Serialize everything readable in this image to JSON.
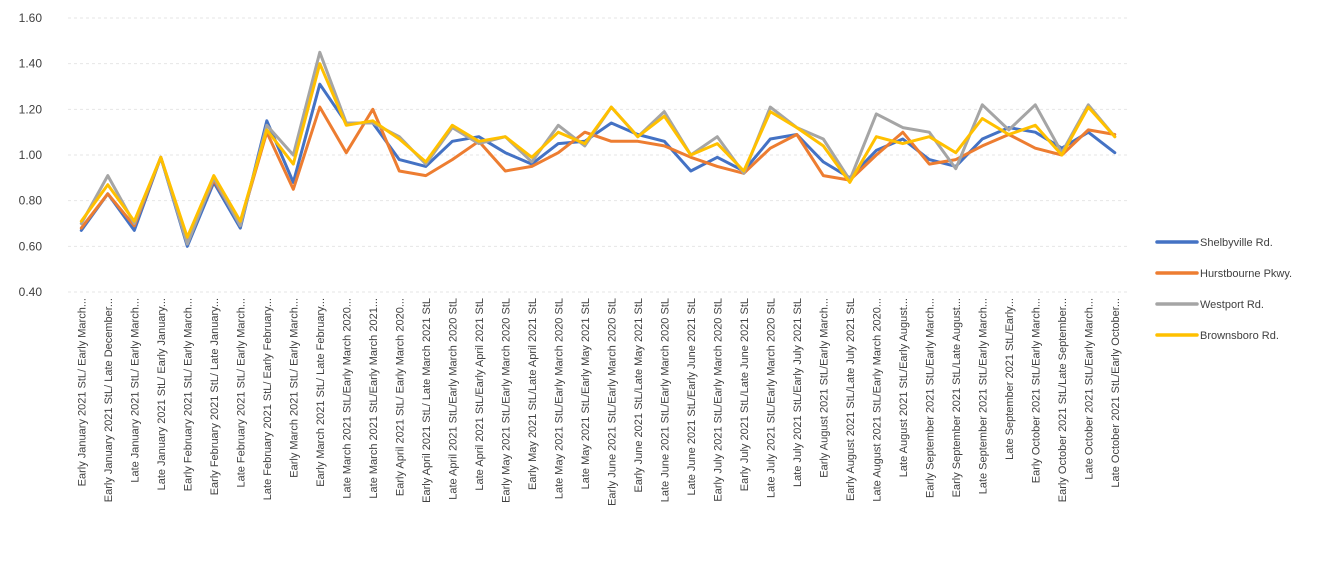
{
  "chart_data": {
    "type": "line",
    "title": "",
    "xlabel": "",
    "ylabel": "",
    "ylim": [
      0.4,
      1.6
    ],
    "yticks": [
      "0.40",
      "0.60",
      "0.80",
      "1.00",
      "1.20",
      "1.40",
      "1.60"
    ],
    "grid": true,
    "legend_position": "right",
    "categories": [
      "Early January 2021 StL/ Early March...",
      "Early January 2021 StL/ Late December...",
      "Late January 2021 StL/ Early March...",
      "Late January 2021 StL/ Early January...",
      "Early February 2021 StL/ Early March...",
      "Early February 2021 StL/ Late January...",
      "Late February 2021 StL/ Early March...",
      "Late February 2021 StL/ Early February...",
      "Early March 2021 StL/ Early March...",
      "Early March 2021 StL/ Late February...",
      "Late March 2021 StL/Early March 2020...",
      "Late March 2021 StL/Early March 2021...",
      "Early April 2021 StL/ Early March 2020...",
      "Early April 2021 StL/ Late March 2021 StL",
      "Late April 2021 StL/Early March 2020 StL",
      "Late April 2021 StL/Early April 2021 StL",
      "Early May 2021 StL/Early March 2020 StL",
      "Early May 2021 StL/Late April 2021 StL",
      "Late May 2021 StL/Early March 2020 StL",
      "Late May 2021 StL/Early May 2021 StL",
      "Early June 2021 StL/Early March 2020 StL",
      "Early June 2021 StL/Late May 2021 StL",
      "Late June 2021 StL/Early March 2020 StL",
      "Late June 2021 StL/Early June 2021 StL",
      "Early July 2021 StL/Early March 2020 StL",
      "Early July 2021 StL/Late June 2021 StL",
      "Late July 2021 StL/Early March 2020 StL",
      "Late July 2021 StL/Early July 2021 StL",
      "Early August 2021 StL/Early March...",
      "Early August 2021 StL/Late July 2021 StL",
      "Late August 2021 StL/Early March 2020...",
      "Late August 2021 StL/Early August...",
      "Early September 2021 StL/Early March...",
      "Early September 2021 StL/Late August...",
      "Late September 2021 StL/Early March...",
      "Late September 2021 StL/Early...",
      "Early October 2021 StL/Early March...",
      "Early October 2021 StL/Late September...",
      "Late October 2021 StL/Early March...",
      "Late October 2021 StL/Early October..."
    ],
    "series": [
      {
        "name": "Shelbyville Rd.",
        "color": "#4472C4",
        "values": [
          0.67,
          0.83,
          0.67,
          0.99,
          0.6,
          0.88,
          0.68,
          1.15,
          0.88,
          1.31,
          1.14,
          1.14,
          0.98,
          0.95,
          1.06,
          1.08,
          1.01,
          0.96,
          1.05,
          1.06,
          1.14,
          1.09,
          1.06,
          0.93,
          0.99,
          0.93,
          1.07,
          1.09,
          0.97,
          0.9,
          1.02,
          1.07,
          0.98,
          0.95,
          1.07,
          1.12,
          1.1,
          1.03,
          1.1,
          1.01
        ]
      },
      {
        "name": "Hurstbourne Pkwy.",
        "color": "#ED7D31",
        "values": [
          0.68,
          0.83,
          0.69,
          0.99,
          0.63,
          0.89,
          0.7,
          1.1,
          0.85,
          1.21,
          1.01,
          1.2,
          0.93,
          0.91,
          0.98,
          1.06,
          0.93,
          0.95,
          1.01,
          1.1,
          1.06,
          1.06,
          1.04,
          0.99,
          0.95,
          0.92,
          1.03,
          1.09,
          0.91,
          0.89,
          1.0,
          1.1,
          0.96,
          0.98,
          1.04,
          1.09,
          1.03,
          1.0,
          1.11,
          1.09
        ]
      },
      {
        "name": "Westport Rd.",
        "color": "#A5A5A5",
        "values": [
          0.7,
          0.91,
          0.7,
          0.99,
          0.61,
          0.9,
          0.69,
          1.13,
          1.0,
          1.45,
          1.14,
          1.14,
          1.08,
          0.96,
          1.12,
          1.05,
          1.08,
          0.97,
          1.13,
          1.04,
          1.21,
          1.08,
          1.19,
          1.0,
          1.08,
          0.92,
          1.21,
          1.12,
          1.07,
          0.89,
          1.18,
          1.12,
          1.1,
          0.94,
          1.22,
          1.11,
          1.22,
          1.01,
          1.22,
          1.08
        ]
      },
      {
        "name": "Brownsboro Rd.",
        "color": "#FFC000",
        "values": [
          0.71,
          0.87,
          0.71,
          0.99,
          0.64,
          0.91,
          0.71,
          1.11,
          0.96,
          1.4,
          1.13,
          1.15,
          1.07,
          0.97,
          1.13,
          1.06,
          1.08,
          0.99,
          1.1,
          1.05,
          1.21,
          1.08,
          1.17,
          1.0,
          1.05,
          0.93,
          1.19,
          1.12,
          1.04,
          0.88,
          1.08,
          1.05,
          1.08,
          1.01,
          1.16,
          1.09,
          1.13,
          1.0,
          1.21,
          1.08
        ]
      }
    ]
  }
}
